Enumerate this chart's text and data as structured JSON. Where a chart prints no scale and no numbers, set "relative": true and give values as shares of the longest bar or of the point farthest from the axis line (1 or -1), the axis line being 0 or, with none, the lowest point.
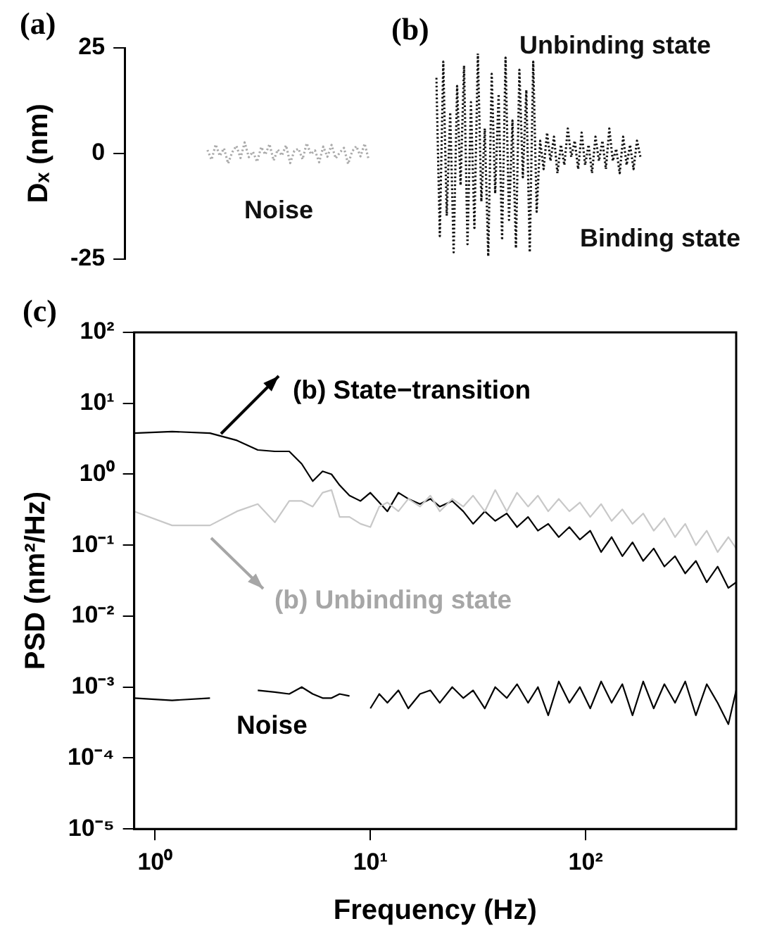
{
  "chart_data": [
    {
      "type": "line",
      "title": "(a)",
      "ylabel": "Dₓ (nm)",
      "line_style": "dotted",
      "tick_labels": "y",
      "annotations": [
        "Noise"
      ],
      "ylim": [
        -25,
        25
      ],
      "yticks": [
        -25,
        0,
        25
      ],
      "categories": [
        null,
        null,
        null,
        null,
        null,
        null,
        null,
        null,
        null,
        null,
        null,
        null,
        null,
        null,
        null,
        null,
        null,
        null,
        null,
        null,
        null,
        null,
        null,
        null,
        null,
        null,
        null,
        null,
        null,
        null,
        null,
        null,
        null,
        null,
        null,
        null,
        null,
        null,
        null,
        null,
        null,
        null,
        null,
        null,
        null,
        null,
        null,
        null,
        null,
        null,
        null,
        null,
        null,
        null,
        null,
        null,
        null,
        null,
        null,
        null
      ],
      "series": [
        {
          "color": "#aaaaaa",
          "values": [
            null,
            null,
            null,
            null,
            null,
            null,
            null,
            null,
            null,
            null,
            null,
            null,
            null,
            null,
            null,
            null,
            null,
            null,
            null,
            null,
            0.8,
            -1.5,
            2.1,
            -0.6,
            1.2,
            -2.4,
            0.3,
            1.8,
            -1.1,
            2.6,
            -0.9,
            0.4,
            -2.0,
            1.5,
            -0.3,
            2.2,
            -1.7,
            0.9,
            -0.5,
            1.9,
            -2.3,
            0.6,
            1.1,
            -1.4,
            2.4,
            -0.2,
            0.7,
            -2.1,
            1.6,
            -0.8,
            2.0,
            -1.2,
            0.2,
            1.3,
            -2.5,
            0.5,
            1.7,
            -0.7,
            2.3,
            -1.6
          ]
        }
      ]
    },
    {
      "type": "line",
      "title": "(b)",
      "relative": true,
      "line_style": "dotted",
      "tick_labels": false,
      "annotations": [
        "Unbinding state",
        "Binding state"
      ],
      "categories": [
        null,
        null,
        null,
        null,
        null,
        null,
        null,
        null,
        null,
        null,
        null,
        null,
        null,
        null,
        null,
        null,
        null,
        null,
        null,
        null,
        null,
        null,
        null,
        null,
        null,
        null,
        null,
        null,
        null,
        null,
        null,
        null,
        null,
        null,
        null,
        null,
        null,
        null,
        null,
        null,
        null,
        null,
        null,
        null,
        null,
        null,
        null,
        null,
        null,
        null,
        null,
        null,
        null,
        null,
        null,
        null,
        null,
        null,
        null,
        null
      ],
      "series": [
        {
          "color": "#111111",
          "values": [
            0.88,
            0.1,
            0.96,
            0.2,
            0.71,
            0.02,
            0.84,
            0.35,
            0.94,
            0.06,
            0.76,
            0.14,
            1,
            0.27,
            0.63,
            0,
            0.9,
            0.31,
            0.8,
            0.08,
            0.98,
            0.18,
            0.67,
            0.04,
            0.92,
            0.39,
            0.82,
            0.02,
            0.96,
            0.22,
            0.57,
            0.43,
            0.61,
            0.47,
            0.59,
            0.41,
            0.55,
            0.45,
            0.63,
            0.49,
            0.57,
            0.43,
            0.61,
            0.45,
            0.55,
            0.41,
            0.59,
            0.47,
            0.57,
            0.43,
            0.63,
            0.47,
            0.53,
            0.41,
            0.59,
            0.45,
            0.55,
            0.43,
            0.57,
            0.49
          ]
        }
      ]
    },
    {
      "type": "line",
      "title": "(c)",
      "xlabel": "Frequency (Hz)",
      "ylabel": "PSD (nm²/Hz)",
      "log": "xy",
      "xlim": [
        0.8,
        500
      ],
      "ylim": [
        1e-05,
        100
      ],
      "xticks": [
        {
          "value": 1,
          "label": "10⁰"
        },
        {
          "value": 10,
          "label": "10¹"
        },
        {
          "value": 100,
          "label": "10²"
        }
      ],
      "yticks": [
        {
          "value": 1e-05,
          "label": "10⁻⁵"
        },
        {
          "value": 0.0001,
          "label": "10⁻⁴"
        },
        {
          "value": 0.001,
          "label": "10⁻³"
        },
        {
          "value": 0.01,
          "label": "10⁻²"
        },
        {
          "value": 0.1,
          "label": "10⁻¹"
        },
        {
          "value": 1,
          "label": "10⁰"
        },
        {
          "value": 10,
          "label": "10¹"
        },
        {
          "value": 100,
          "label": "10²"
        }
      ],
      "series": [
        {
          "name": "(b) Unbinding state",
          "color": "#c8c8c8",
          "x": [
            0.8,
            1.2,
            1.8,
            2.4,
            3,
            3.6,
            4.2,
            4.8,
            5.4,
            6,
            6.6,
            7.2,
            8,
            9,
            10,
            11,
            12,
            13.5,
            15,
            17,
            19,
            21,
            24,
            27,
            30,
            34,
            38,
            43,
            48,
            54,
            60,
            67,
            75,
            84,
            94,
            105,
            118,
            132,
            148,
            165,
            185,
            207,
            232,
            260,
            290,
            325,
            365,
            410,
            460,
            500
          ],
          "values": [
            0.3,
            0.19,
            0.19,
            0.3,
            0.38,
            0.21,
            0.42,
            0.42,
            0.35,
            0.55,
            0.6,
            0.25,
            0.25,
            0.2,
            0.18,
            0.35,
            0.4,
            0.3,
            0.45,
            0.35,
            0.5,
            0.3,
            0.45,
            0.35,
            0.5,
            0.3,
            0.6,
            0.3,
            0.55,
            0.35,
            0.5,
            0.3,
            0.45,
            0.3,
            0.4,
            0.25,
            0.38,
            0.22,
            0.32,
            0.2,
            0.28,
            0.16,
            0.24,
            0.13,
            0.2,
            0.1,
            0.16,
            0.08,
            0.13,
            0.09
          ]
        },
        {
          "name": "(b) State−transition",
          "color": "#000000",
          "x": [
            0.8,
            1.2,
            1.8,
            2.4,
            3,
            3.6,
            4.2,
            4.8,
            5.4,
            6,
            6.6,
            7.2,
            8,
            9,
            10,
            11,
            12,
            13.5,
            15,
            17,
            19,
            21,
            24,
            27,
            30,
            34,
            38,
            43,
            48,
            54,
            60,
            67,
            75,
            84,
            94,
            105,
            118,
            132,
            148,
            165,
            185,
            207,
            232,
            260,
            290,
            325,
            365,
            410,
            460,
            500
          ],
          "values": [
            3.8,
            4.0,
            3.8,
            3.0,
            2.2,
            2.1,
            2.1,
            1.4,
            0.8,
            1.1,
            1.0,
            0.7,
            0.5,
            0.42,
            0.55,
            0.4,
            0.3,
            0.55,
            0.45,
            0.38,
            0.45,
            0.35,
            0.42,
            0.3,
            0.2,
            0.3,
            0.22,
            0.28,
            0.18,
            0.25,
            0.16,
            0.2,
            0.13,
            0.18,
            0.12,
            0.16,
            0.08,
            0.13,
            0.07,
            0.11,
            0.06,
            0.09,
            0.05,
            0.07,
            0.04,
            0.06,
            0.03,
            0.05,
            0.025,
            0.03
          ]
        },
        {
          "name": "Noise",
          "color": "#000000",
          "x": [
            0.8,
            1.2,
            1.8,
            2.4,
            3,
            3.6,
            4.2,
            4.8,
            5.4,
            6,
            6.6,
            7.2,
            8,
            9,
            10,
            11,
            12,
            13.5,
            15,
            17,
            19,
            21,
            24,
            27,
            30,
            34,
            38,
            43,
            48,
            54,
            60,
            67,
            75,
            84,
            94,
            105,
            118,
            132,
            148,
            165,
            185,
            207,
            232,
            260,
            290,
            325,
            365,
            410,
            460,
            500
          ],
          "values": [
            0.0007,
            0.00065,
            0.0007,
            null,
            0.0009,
            0.00085,
            0.0008,
            0.001,
            0.0008,
            0.0007,
            0.0007,
            0.0008,
            0.00075,
            null,
            0.0005,
            0.0008,
            0.0006,
            0.0009,
            0.0005,
            0.0008,
            0.0009,
            0.0006,
            0.001,
            0.0007,
            0.0009,
            0.0005,
            0.001,
            0.0007,
            0.0011,
            0.0006,
            0.001,
            0.0004,
            0.0012,
            0.0006,
            0.001,
            0.0005,
            0.0012,
            0.0006,
            0.0011,
            0.0004,
            0.0012,
            0.0005,
            0.0011,
            0.0006,
            0.0012,
            0.0004,
            0.0011,
            0.0006,
            0.0003,
            0.0009
          ]
        }
      ]
    }
  ]
}
